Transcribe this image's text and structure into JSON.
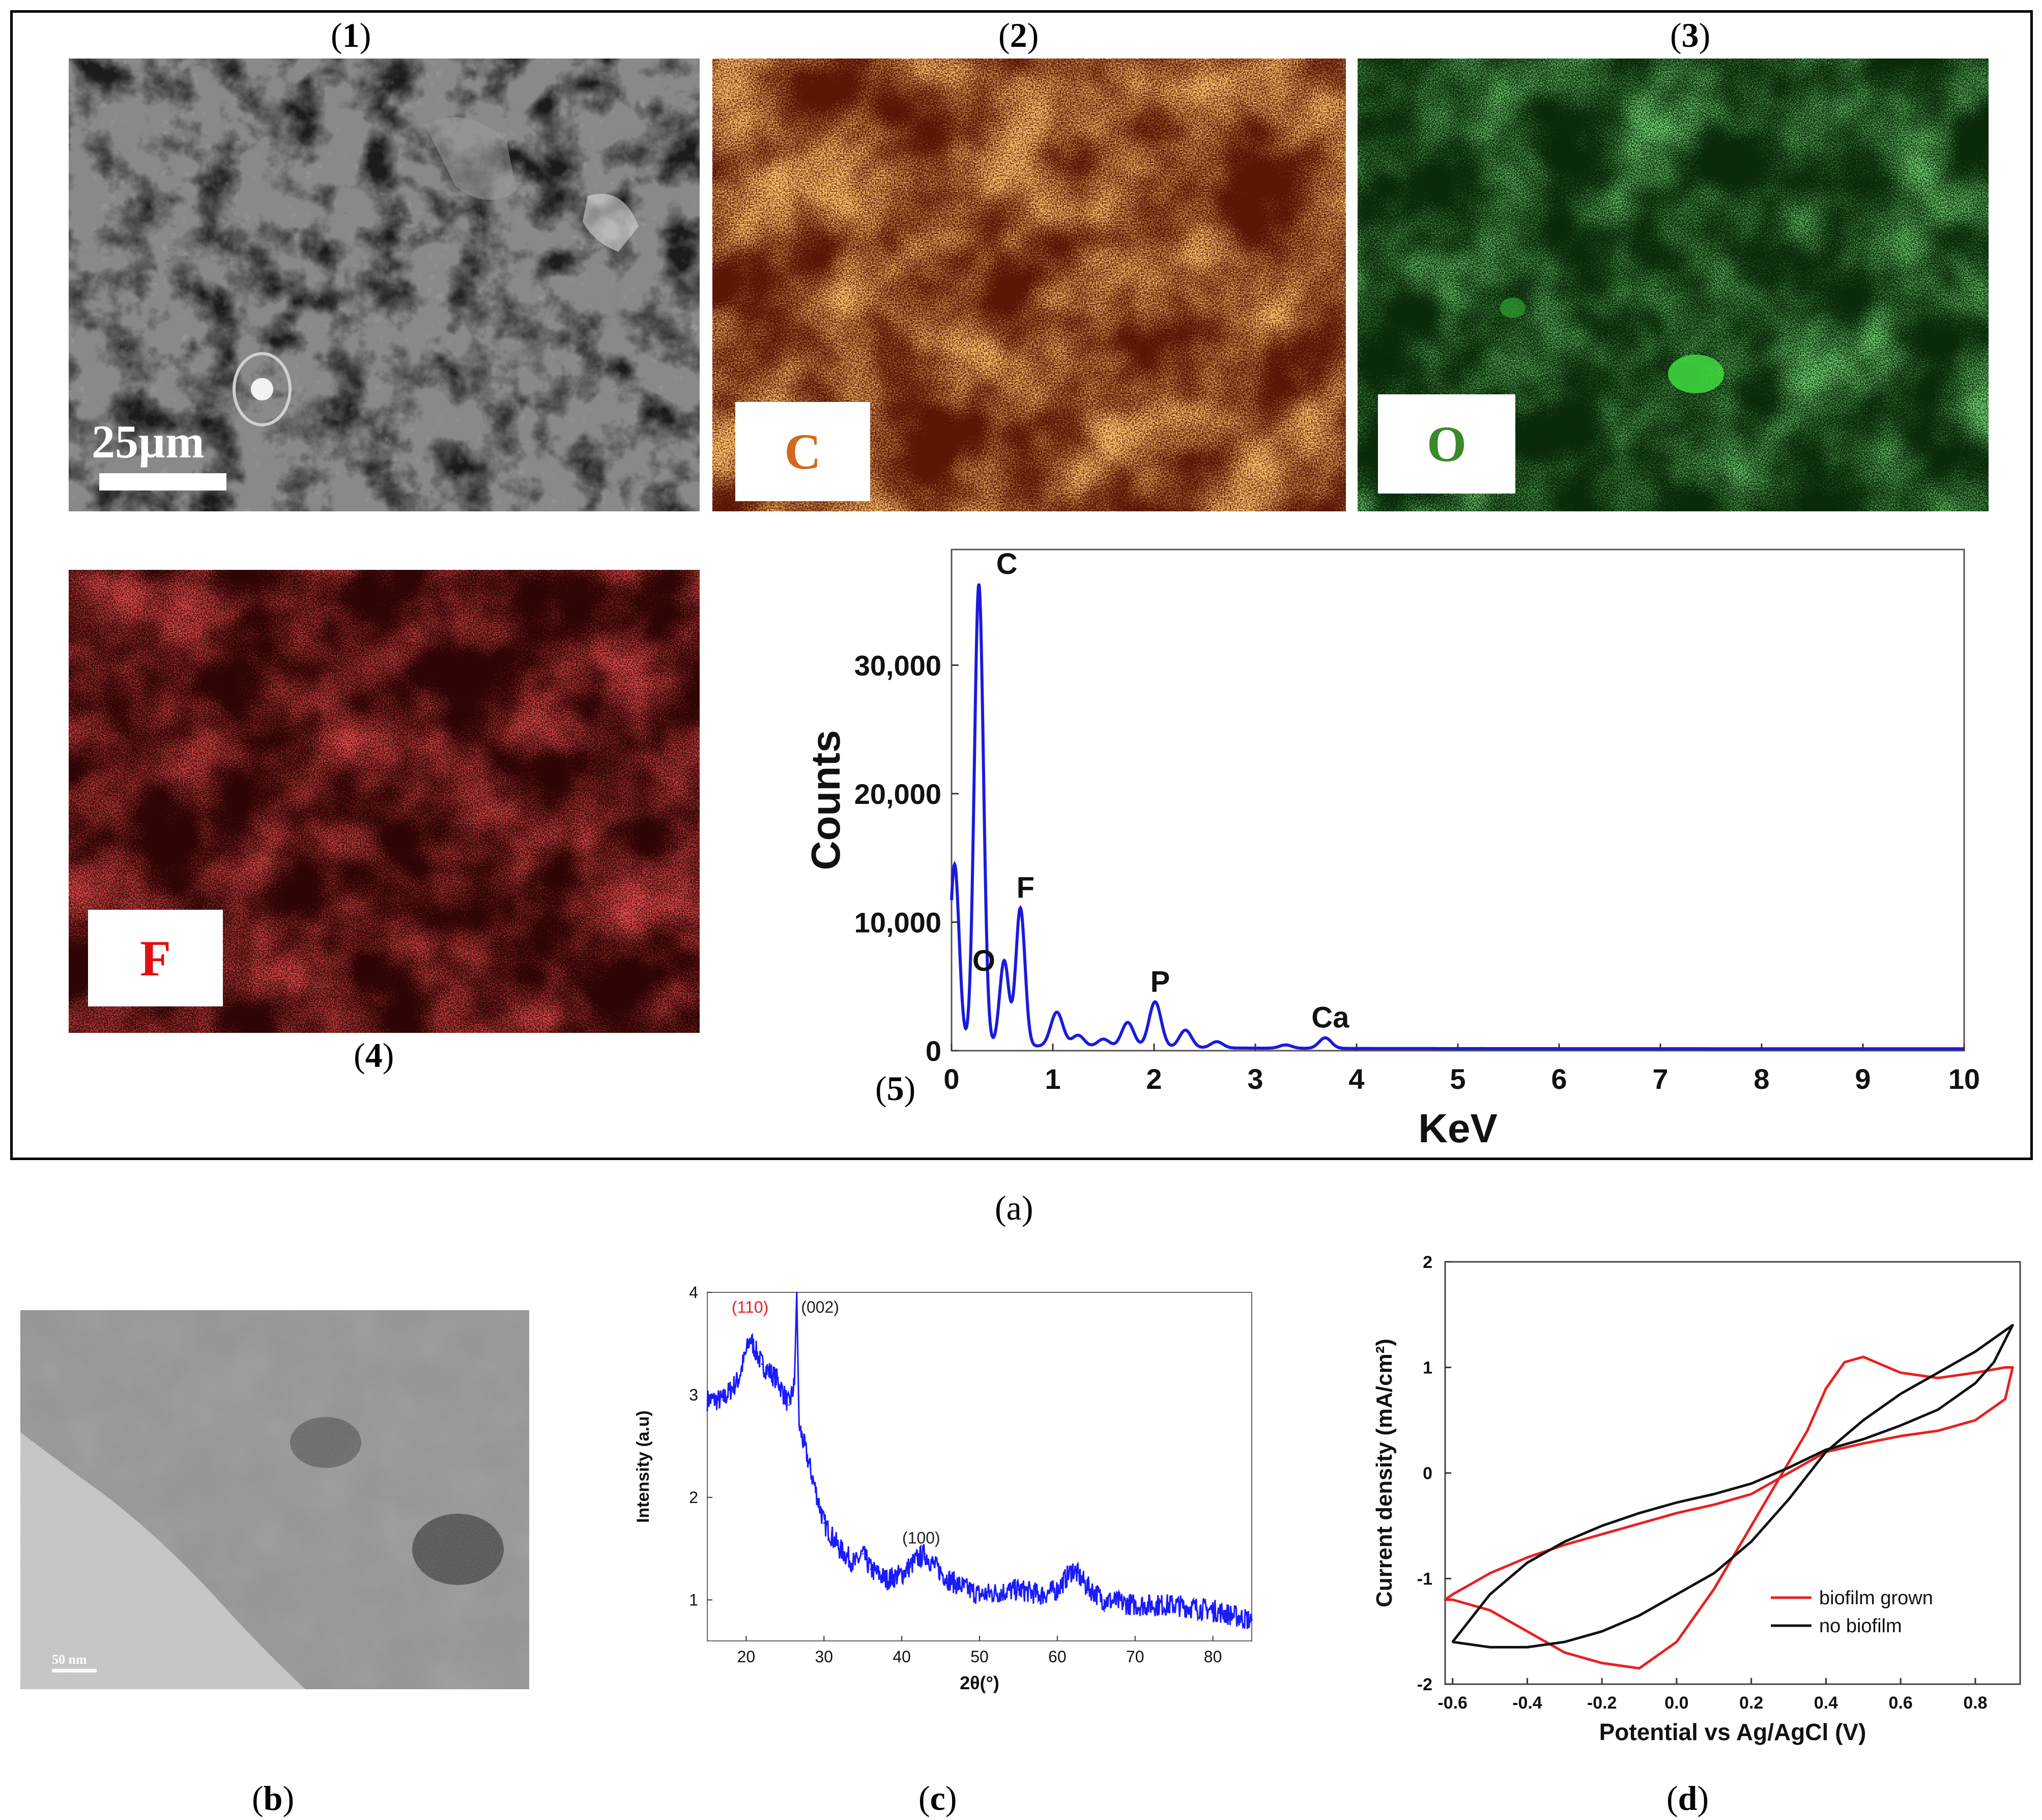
{
  "figure": {
    "panel_a_label": "a",
    "panel_b_label": "b",
    "panel_c_label": "c",
    "panel_d_label": "d",
    "sub_labels": [
      "1",
      "2",
      "3",
      "4",
      "5"
    ],
    "scale_bar_sem": "25µm",
    "element_maps": [
      "C",
      "O",
      "F"
    ],
    "scale_bar_tem": "50 nm",
    "colors": {
      "carbon_map": "#c0330f",
      "oxygen_map": "#1f8a1f",
      "fluorine_map": "#8a0c0c",
      "carbon_text": "#d2691e",
      "oxygen_text": "#3a8a2a",
      "fluorine_text": "#e01010",
      "eds_line": "#1a1adf",
      "xrd_line": "#1a1aff",
      "cv_red": "#e82020",
      "cv_black": "#111111"
    }
  },
  "chart_data": [
    {
      "type": "line",
      "id": "eds_spectrum",
      "xlabel": "KeV",
      "ylabel": "Counts",
      "xlim": [
        0,
        10
      ],
      "ylim": [
        0,
        39000
      ],
      "xticks": [
        "0",
        "1",
        "2",
        "3",
        "4",
        "5",
        "6",
        "7",
        "8",
        "9",
        "10"
      ],
      "yticks": [
        "0",
        "10,000",
        "20,000",
        "30,000"
      ],
      "peaks": [
        {
          "label": "",
          "x": 0.03,
          "y": 14500
        },
        {
          "label": "C",
          "x": 0.27,
          "y": 36300
        },
        {
          "label": "O",
          "x": 0.52,
          "y": 7000
        },
        {
          "label": "F",
          "x": 0.68,
          "y": 11100
        },
        {
          "label": "",
          "x": 1.04,
          "y": 3000
        },
        {
          "label": "",
          "x": 1.25,
          "y": 1200
        },
        {
          "label": "",
          "x": 1.5,
          "y": 900
        },
        {
          "label": "",
          "x": 1.74,
          "y": 2200
        },
        {
          "label": "P",
          "x": 2.01,
          "y": 3800
        },
        {
          "label": "",
          "x": 2.31,
          "y": 1600
        },
        {
          "label": "",
          "x": 2.62,
          "y": 700
        },
        {
          "label": "",
          "x": 3.3,
          "y": 450
        },
        {
          "label": "Ca",
          "x": 3.69,
          "y": 1000
        }
      ]
    },
    {
      "type": "line",
      "id": "xrd_pattern",
      "xlabel": "2θ(°)",
      "ylabel": "Intensity (a.u)",
      "xlim": [
        15,
        85
      ],
      "ylim": [
        0.6,
        4
      ],
      "xticks": [
        "20",
        "30",
        "40",
        "50",
        "60",
        "70",
        "80"
      ],
      "yticks": [
        "1",
        "2",
        "3",
        "4"
      ],
      "annotations": [
        {
          "text": "(110)",
          "x": 20.5,
          "y": 3.85,
          "color": "#e82020"
        },
        {
          "text": "(002)",
          "x": 29.5,
          "y": 3.85,
          "color": "#222222"
        },
        {
          "text": "(100)",
          "x": 42.5,
          "y": 1.6,
          "color": "#222222"
        }
      ],
      "x": [
        15,
        17,
        19,
        20.5,
        22,
        24,
        25.5,
        26.2,
        26.5,
        26.8,
        28,
        30,
        32,
        34,
        35,
        36,
        38,
        40,
        42,
        43,
        44,
        46,
        48,
        50,
        55,
        58,
        60,
        62,
        64,
        66,
        70,
        75,
        80,
        85
      ],
      "y": [
        2.95,
        2.95,
        3.15,
        3.55,
        3.3,
        3.15,
        2.9,
        3.1,
        4.0,
        2.7,
        2.35,
        1.75,
        1.5,
        1.35,
        1.45,
        1.3,
        1.2,
        1.25,
        1.4,
        1.45,
        1.35,
        1.2,
        1.12,
        1.05,
        1.1,
        1.05,
        1.1,
        1.3,
        1.12,
        1.0,
        0.95,
        0.95,
        0.9,
        0.8
      ]
    },
    {
      "type": "line",
      "id": "cyclic_voltammetry",
      "xlabel": "Potential vs Ag/AgCl (V)",
      "ylabel": "Current density (mA/cm²)",
      "xlim": [
        -0.62,
        0.92
      ],
      "ylim": [
        -2,
        2
      ],
      "xticks": [
        "-0.6",
        "-0.4",
        "-0.2",
        "0.0",
        "0.2",
        "0.4",
        "0.6",
        "0.8"
      ],
      "yticks": [
        "-2",
        "-1",
        "0",
        "1",
        "2"
      ],
      "series": [
        {
          "name": "biofilm grown",
          "color": "#e82020",
          "x": [
            -0.6,
            -0.5,
            -0.4,
            -0.3,
            -0.2,
            -0.1,
            0.0,
            0.1,
            0.15,
            0.2,
            0.25,
            0.3,
            0.35,
            0.4,
            0.45,
            0.5,
            0.6,
            0.7,
            0.8,
            0.88,
            0.9,
            0.88,
            0.8,
            0.7,
            0.6,
            0.5,
            0.4,
            0.3,
            0.2,
            0.1,
            0.0,
            -0.1,
            -0.2,
            -0.3,
            -0.4,
            -0.5,
            -0.55,
            -0.6,
            -0.62,
            -0.6
          ],
          "y": [
            -1.2,
            -1.3,
            -1.5,
            -1.7,
            -1.8,
            -1.85,
            -1.6,
            -1.1,
            -0.8,
            -0.5,
            -0.2,
            0.1,
            0.4,
            0.8,
            1.05,
            1.1,
            0.95,
            0.9,
            0.95,
            1.0,
            1.0,
            0.7,
            0.5,
            0.4,
            0.35,
            0.28,
            0.2,
            0.0,
            -0.2,
            -0.3,
            -0.38,
            -0.48,
            -0.58,
            -0.68,
            -0.8,
            -0.95,
            -1.05,
            -1.15,
            -1.2,
            -1.2
          ]
        },
        {
          "name": "no biofilm",
          "color": "#111111",
          "x": [
            -0.6,
            -0.5,
            -0.4,
            -0.3,
            -0.2,
            -0.1,
            0.0,
            0.1,
            0.2,
            0.3,
            0.4,
            0.5,
            0.6,
            0.7,
            0.8,
            0.9,
            0.85,
            0.8,
            0.7,
            0.6,
            0.5,
            0.4,
            0.3,
            0.2,
            0.1,
            0.0,
            -0.1,
            -0.2,
            -0.3,
            -0.4,
            -0.5,
            -0.6
          ],
          "y": [
            -1.6,
            -1.65,
            -1.65,
            -1.6,
            -1.5,
            -1.35,
            -1.15,
            -0.95,
            -0.65,
            -0.25,
            0.2,
            0.5,
            0.75,
            0.95,
            1.15,
            1.4,
            1.05,
            0.85,
            0.6,
            0.45,
            0.32,
            0.22,
            0.05,
            -0.1,
            -0.2,
            -0.28,
            -0.38,
            -0.5,
            -0.65,
            -0.85,
            -1.15,
            -1.6
          ]
        }
      ]
    }
  ]
}
